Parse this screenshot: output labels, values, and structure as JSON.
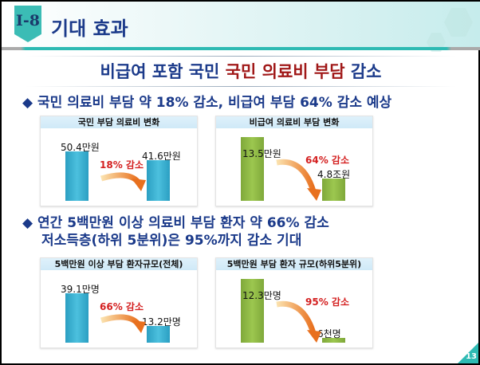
{
  "header": {
    "section": "I-8",
    "title": "기대 효과"
  },
  "subtitle": {
    "part1": "비급여 포함 국민 ",
    "part2": "국민 의료비 부담 ",
    "part3": "감소"
  },
  "bullets": [
    {
      "icon": "diamond-icon",
      "lines": [
        "국민 의료비 부담 약 18% 감소, 비급여 부담 64% 감소 예상"
      ]
    },
    {
      "icon": "diamond-icon",
      "lines": [
        "연간 5백만원 이상 의료비 부담 환자 약 66% 감소",
        "저소득층(하위 5분위)은 95%까지 감소 기대"
      ]
    }
  ],
  "page_number": "13",
  "colors": {
    "blue_bar": "#3db3d6",
    "green_bar": "#8fbb45",
    "red_text": "#d42020",
    "navy": "#1b3a8a"
  },
  "chart_data": [
    {
      "type": "bar",
      "title": "국민 부담 의료비 변화",
      "values": [
        50.4,
        41.6
      ],
      "labels": [
        "50.4만원",
        "41.6만원"
      ],
      "annotation": "18% 감소",
      "color": "blue"
    },
    {
      "type": "bar",
      "title": "비급여 의료비 부담 변화",
      "values": [
        13.5,
        4.8
      ],
      "labels": [
        "13.5만원",
        "4.8조원"
      ],
      "annotation": "64% 감소",
      "color": "green"
    },
    {
      "type": "bar",
      "title": "5백만원 이상 부담 환자규모(전체)",
      "values": [
        39.1,
        13.2
      ],
      "labels": [
        "39.1만명",
        "13.2만명"
      ],
      "annotation": "66% 감소",
      "color": "blue"
    },
    {
      "type": "bar",
      "title": "5백만원 부담 환자 규모(하위5분위)",
      "values": [
        12.3,
        0.6
      ],
      "labels": [
        "12.3만명",
        "6천명"
      ],
      "annotation": "95% 감소",
      "color": "green"
    }
  ]
}
